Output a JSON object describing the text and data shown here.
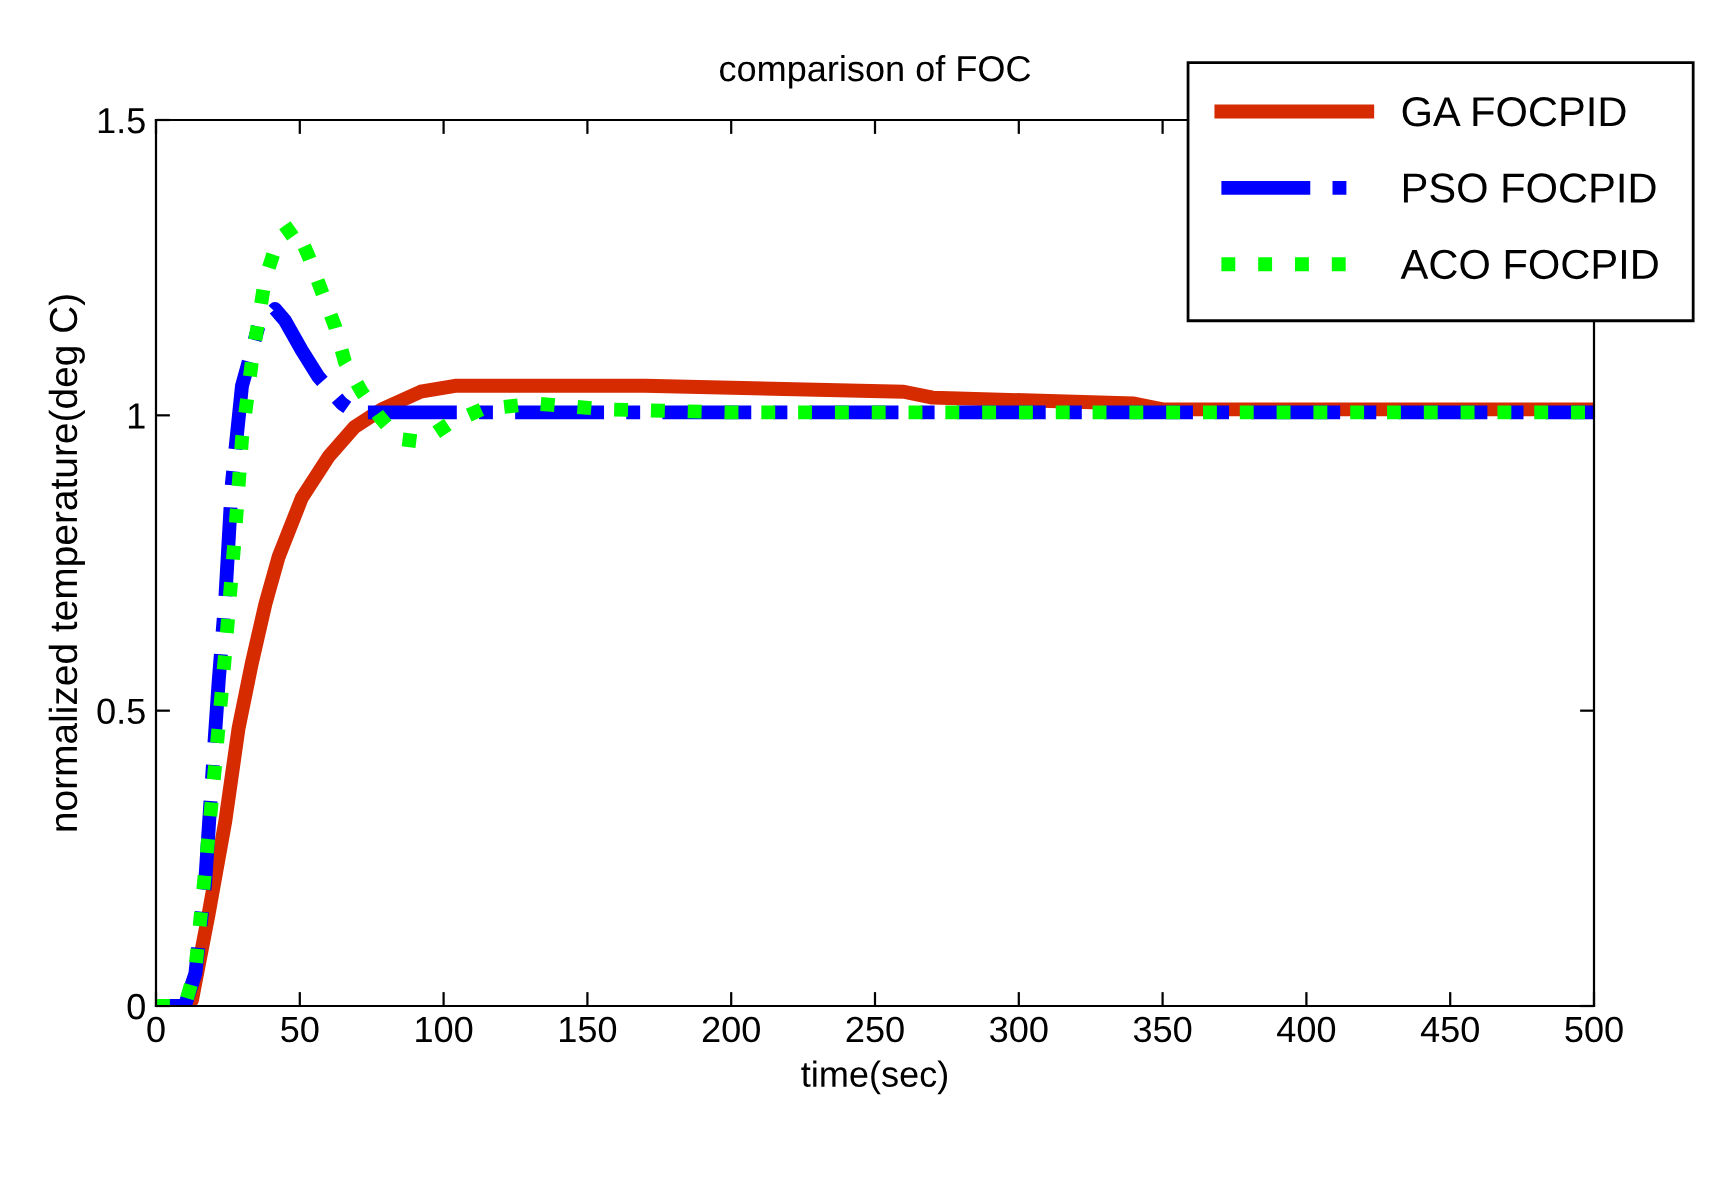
{
  "chart_data": {
    "type": "line",
    "title": "comparison of FOC",
    "xlabel": "time(sec)",
    "ylabel": "normalized temperature(deg C)",
    "xlim": [
      0,
      500
    ],
    "ylim": [
      0,
      1.5
    ],
    "xticks": [
      0,
      50,
      100,
      150,
      200,
      250,
      300,
      350,
      400,
      450,
      500
    ],
    "yticks": [
      0,
      0.5,
      1,
      1.5
    ],
    "grid": false,
    "legend": "top right",
    "marker": "none",
    "series": [
      {
        "name": "GA FOCPID",
        "color": "#d62a00",
        "line_style": "solid",
        "x": [
          0,
          10,
          12.5,
          18.3,
          24.1,
          28.7,
          33.3,
          38,
          42.6,
          50.7,
          60,
          69,
          78.5,
          92,
          104,
          170,
          260,
          270,
          340,
          350,
          500
        ],
        "values": [
          0,
          0,
          0.01,
          0.156,
          0.313,
          0.47,
          0.58,
          0.68,
          0.76,
          0.86,
          0.93,
          0.98,
          1.01,
          1.04,
          1.05,
          1.05,
          1.04,
          1.03,
          1.02,
          1.01,
          1.01
        ]
      },
      {
        "name": "PSO FOCPID",
        "color": "#0000ff",
        "line_style": "dashed",
        "x": [
          0,
          10,
          13.7,
          17.1,
          19.4,
          21.8,
          24.1,
          26.4,
          29.9,
          35.6,
          41.4,
          44.9,
          50.7,
          56.5,
          64.6,
          69,
          500
        ],
        "values": [
          0,
          0,
          0.055,
          0.21,
          0.38,
          0.55,
          0.69,
          0.885,
          1.05,
          1.15,
          1.18,
          1.16,
          1.11,
          1.065,
          1.02,
          1.005,
          1.005
        ]
      },
      {
        "name": "ACO FOCPID",
        "color": "#00ff00",
        "line_style": "dotted",
        "x": [
          0,
          10,
          13.7,
          17.1,
          20.6,
          24.1,
          27.5,
          29.9,
          33.3,
          37.9,
          42.6,
          48.4,
          53,
          57.6,
          62.3,
          65.7,
          71.5,
          77.3,
          84.3,
          92.4,
          101.6,
          113.2,
          131.6,
          157,
          200,
          500
        ],
        "values": [
          0,
          0,
          0.062,
          0.23,
          0.41,
          0.6,
          0.8,
          0.96,
          1.09,
          1.23,
          1.3,
          1.32,
          1.27,
          1.21,
          1.15,
          1.09,
          1.04,
          1.0,
          0.96,
          0.955,
          0.985,
          1.01,
          1.02,
          1.01,
          1.005,
          1.005
        ]
      }
    ]
  }
}
